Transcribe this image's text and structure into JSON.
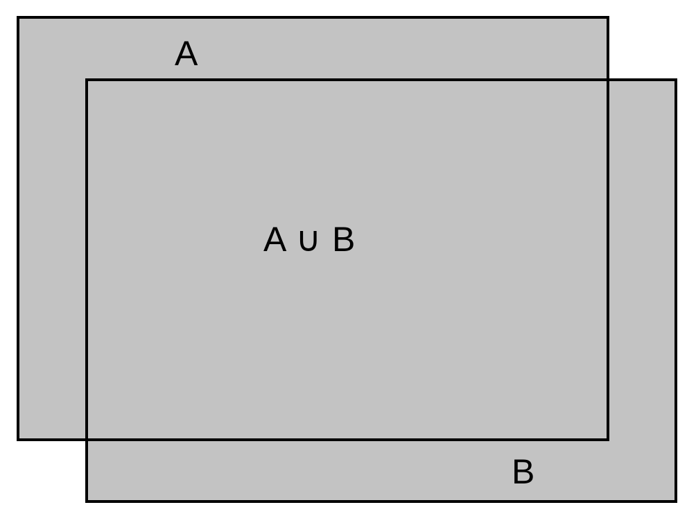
{
  "colors": {
    "fill": "#c3c3c3",
    "border": "#000000",
    "background": "#ffffff"
  },
  "sets": {
    "a_label": "A",
    "b_label": "B"
  },
  "union": {
    "label": "A ∪ B"
  }
}
